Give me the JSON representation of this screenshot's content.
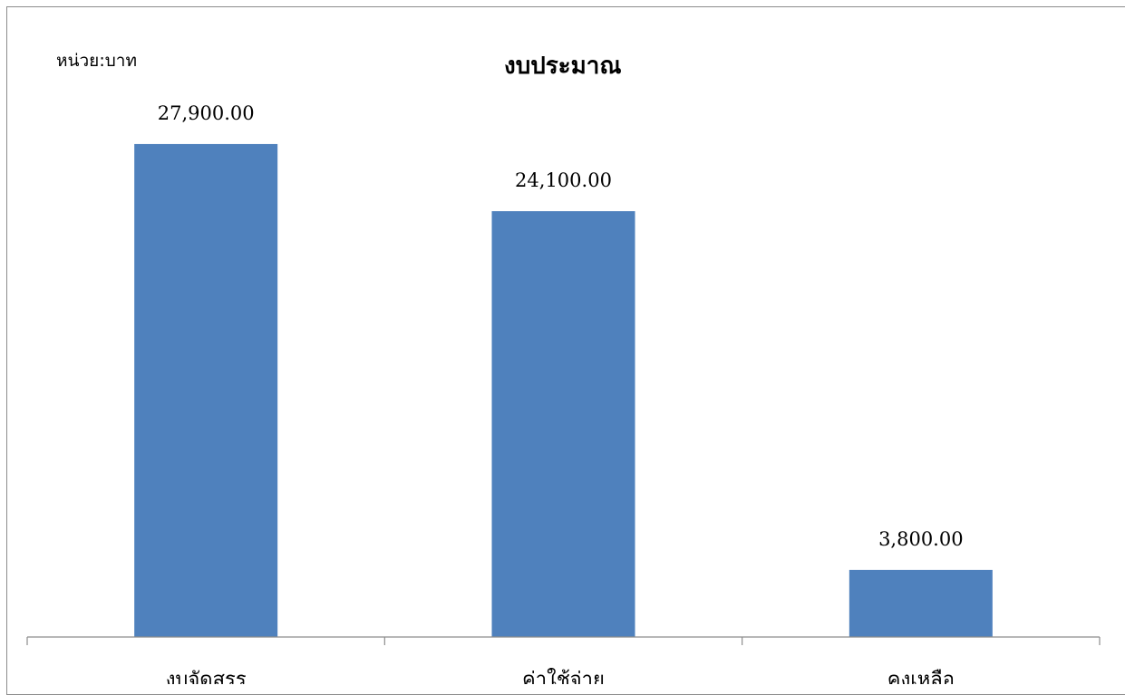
{
  "chart_data": {
    "type": "bar",
    "title": "งบประมาณ",
    "unit_label": "หน่วย:บาท",
    "categories": [
      "งบจัดสรร",
      "ค่าใช้จ่าย",
      "คงเหลือ"
    ],
    "values": [
      27900,
      24100,
      3800
    ],
    "value_labels": [
      "27,900.00",
      "24,100.00",
      "3,800.00"
    ],
    "bar_color": "#4f81bd",
    "grid": false,
    "ylim": [
      0,
      30000
    ]
  }
}
